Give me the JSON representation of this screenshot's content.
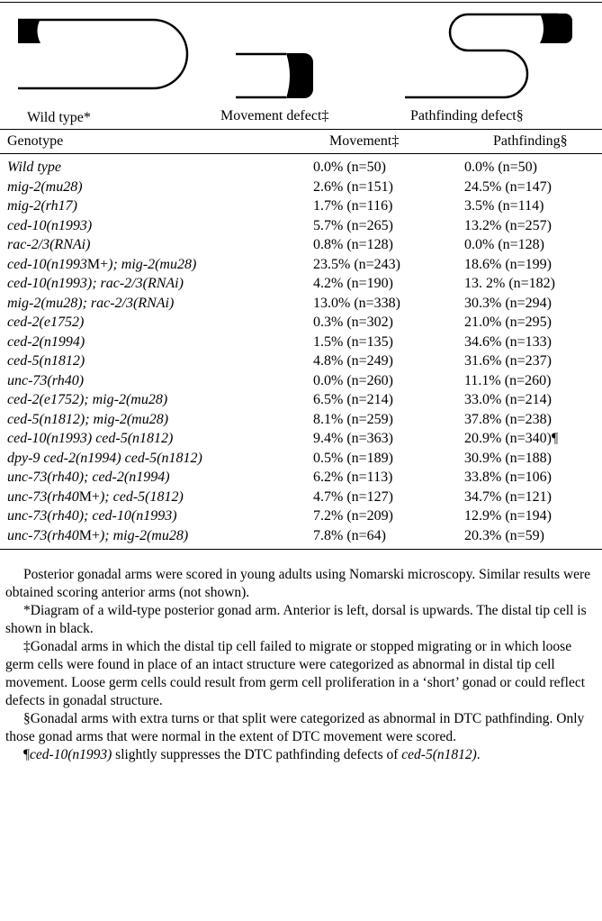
{
  "diagrams": [
    "Wild type*",
    "Movement defect‡",
    "Pathfinding defect§"
  ],
  "table": {
    "header": [
      "Genotype",
      "Movement‡",
      "Pathfinding§"
    ],
    "rows": [
      [
        [
          "Wild type"
        ],
        "0.0% (n=50)",
        "0.0% (n=50)"
      ],
      [
        [
          "mig-2(mu28)"
        ],
        "2.6% (n=151)",
        "24.5% (n=147)"
      ],
      [
        [
          "mig-2(rh17)"
        ],
        "1.7% (n=116)",
        "3.5% (n=114)"
      ],
      [
        [
          "ced-10(n1993)"
        ],
        "5.7% (n=265)",
        "13.2% (n=257)"
      ],
      [
        [
          "rac-2/3(RNAi)"
        ],
        "0.8% (n=128)",
        "0.0% (n=128)"
      ],
      [
        [
          "ced-10(n1993",
          "M+",
          "); mig-2(mu28)"
        ],
        "23.5% (n=243)",
        "18.6% (n=199)"
      ],
      [
        [
          "ced-10(n1993); rac-2/3(RNAi)"
        ],
        "4.2% (n=190)",
        "13. 2% (n=182)"
      ],
      [
        [
          "mig-2(mu28); rac-2/3(RNAi)"
        ],
        "13.0% (n=338)",
        "30.3% (n=294)"
      ],
      [
        [
          "ced-2(e1752)"
        ],
        "0.3% (n=302)",
        "21.0% (n=295)"
      ],
      [
        [
          "ced-2(n1994)"
        ],
        "1.5% (n=135)",
        "34.6% (n=133)"
      ],
      [
        [
          "ced-5(n1812)"
        ],
        "4.8% (n=249)",
        "31.6% (n=237)"
      ],
      [
        [
          "unc-73(rh40)"
        ],
        "0.0% (n=260)",
        "11.1% (n=260)"
      ],
      [
        [
          "ced-2(e1752); mig-2(mu28)"
        ],
        "6.5% (n=214)",
        "33.0% (n=214)"
      ],
      [
        [
          "ced-5(n1812); mig-2(mu28)"
        ],
        "8.1% (n=259)",
        "37.8% (n=238)"
      ],
      [
        [
          "ced-10(n1993) ced-5(n1812)"
        ],
        "9.4% (n=363)",
        "20.9% (n=340)¶"
      ],
      [
        [
          "dpy-9 ced-2(n1994) ced-5(n1812)"
        ],
        "0.5% (n=189)",
        "30.9% (n=188)"
      ],
      [
        [
          "unc-73(rh40); ced-2(n1994)"
        ],
        "6.2% (n=113)",
        "33.8% (n=106)"
      ],
      [
        [
          "unc-73(rh40",
          "M+",
          "); ced-5(1812)"
        ],
        "4.7% (n=127)",
        "34.7% (n=121)"
      ],
      [
        [
          "unc-73(rh40); ced-10(n1993)"
        ],
        "7.2% (n=209)",
        "12.9% (n=194)"
      ],
      [
        [
          "unc-73(rh40",
          "M+",
          "); mig-2(mu28)"
        ],
        "7.8% (n=64)",
        "20.3% (n=59)"
      ]
    ]
  },
  "notes": [
    [
      "Posterior gonadal arms were scored in young adults using Nomarski microscopy. Similar results were obtained scoring anterior arms (not shown)."
    ],
    [
      "*Diagram of a wild-type posterior gonad arm. Anterior is left, dorsal is upwards. The distal tip cell is shown in black."
    ],
    [
      "‡Gonadal arms in which the distal tip cell failed to migrate or stopped migrating or in which loose germ cells were found in place of an intact structure were categorized as abnormal in distal tip cell movement. Loose germ cells could result from germ cell proliferation in a ‘short’ gonad or could reflect defects in gonadal structure."
    ],
    [
      "§Gonadal arms with extra turns or that split were categorized as abnormal in DTC pathfinding. Only those gonad arms that were normal in the extent of DTC movement were scored."
    ],
    [
      "¶",
      "ced-10(n1993)",
      " slightly suppresses the DTC pathfinding defects of ",
      "ced-5(n1812)",
      "."
    ]
  ]
}
